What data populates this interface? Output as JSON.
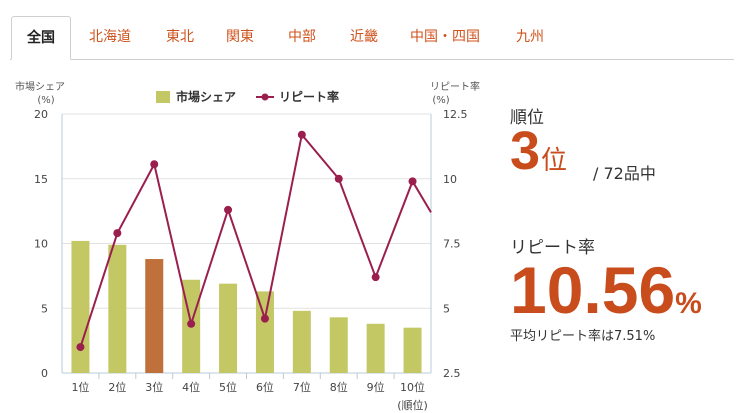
{
  "tabs": [
    {
      "label": "全国",
      "active": true
    },
    {
      "label": "北海道",
      "active": false
    },
    {
      "label": "東北",
      "active": false
    },
    {
      "label": "関東",
      "active": false
    },
    {
      "label": "中部",
      "active": false
    },
    {
      "label": "近畿",
      "active": false
    },
    {
      "label": "中国・四国",
      "active": false
    },
    {
      "label": "九州",
      "active": false
    }
  ],
  "panel": {
    "rank_title": "順位",
    "rank_number": "3",
    "rank_unit": "位",
    "rank_total": "/ 72品中",
    "repeat_title": "リピート率",
    "repeat_value": "10.56",
    "repeat_unit": "%",
    "avg_text": "平均リピート率は7.51%"
  },
  "chart_data": {
    "type": "bar",
    "categories": [
      "1位",
      "2位",
      "3位",
      "4位",
      "5位",
      "6位",
      "7位",
      "8位",
      "9位",
      "10位"
    ],
    "x_axis_unit": "(順位)",
    "left_axis": {
      "title_line1": "市場シェア",
      "title_line2": "(%)",
      "range": [
        0,
        20
      ],
      "ticks": [
        "0",
        "5",
        "10",
        "15",
        "20"
      ]
    },
    "right_axis": {
      "title_line1": "リピート率",
      "title_line2": "(%)",
      "range": [
        2.5,
        12.5
      ],
      "ticks": [
        "2.5",
        "5",
        "7.5",
        "10",
        "12.5"
      ]
    },
    "series": [
      {
        "name": "市場シェア",
        "type": "bar",
        "values": [
          10.2,
          9.9,
          8.8,
          7.2,
          6.9,
          6.3,
          4.8,
          4.3,
          3.8,
          3.5
        ]
      },
      {
        "name": "リピート率",
        "type": "line",
        "values": [
          3.5,
          7.9,
          10.56,
          4.4,
          8.8,
          4.6,
          11.7,
          10.0,
          6.2,
          9.9
        ],
        "trailing_value": 8.7
      }
    ],
    "highlight_index": 2,
    "colors": {
      "bar": "#c3c865",
      "bar_highlight": "#c0703a",
      "line": "#9b1f4e",
      "grid": "#e2e2e2",
      "axis": "#b9cbd8"
    },
    "legend": {
      "position": "top"
    }
  }
}
